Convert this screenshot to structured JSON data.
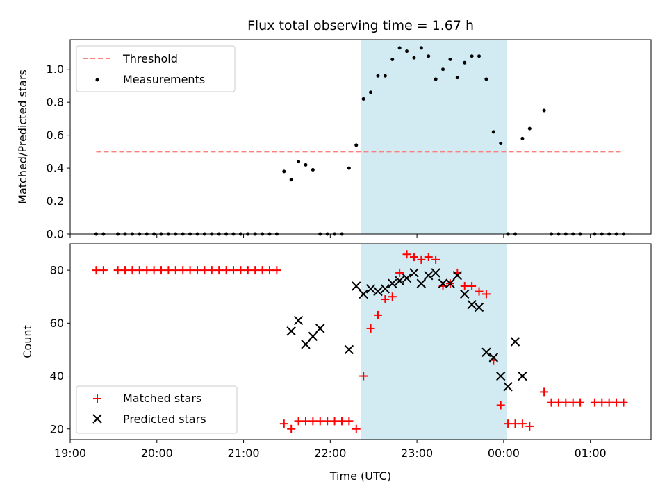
{
  "chart_data": [
    {
      "type": "scatter",
      "title": "Flux total observing time = 1.67 h",
      "xlabel": "",
      "ylabel": "Matched/Predicted stars",
      "xlim": [
        "19:00",
        "01:42"
      ],
      "ylim": [
        0,
        1.18
      ],
      "y_ticks": [
        0.0,
        0.2,
        0.4,
        0.6,
        0.8,
        1.0
      ],
      "y_tick_labels": [
        "0.0",
        "0.2",
        "0.4",
        "0.6",
        "0.8",
        "1.0"
      ],
      "legend_position": "upper-left",
      "shaded_region": {
        "from": "22:21",
        "to": "00:02",
        "color": "#add8e6"
      },
      "threshold": {
        "name": "Threshold",
        "value": 0.5,
        "from": "19:18",
        "to": "01:22",
        "color": "#ff7f7f",
        "style": "dashed"
      },
      "series": [
        {
          "name": "Measurements",
          "color": "#000000",
          "marker": "dot",
          "x": [
            "19:18",
            "19:23",
            "19:33",
            "19:38",
            "19:43",
            "19:48",
            "19:53",
            "19:58",
            "20:03",
            "20:08",
            "20:13",
            "20:18",
            "20:23",
            "20:28",
            "20:33",
            "20:38",
            "20:43",
            "20:48",
            "20:53",
            "20:58",
            "21:03",
            "21:08",
            "21:13",
            "21:18",
            "21:23",
            "21:28",
            "21:33",
            "21:38",
            "21:43",
            "21:48",
            "21:53",
            "21:58",
            "22:03",
            "22:08",
            "22:13",
            "22:18",
            "22:23",
            "22:28",
            "22:33",
            "22:38",
            "22:43",
            "22:48",
            "22:53",
            "22:58",
            "23:03",
            "23:08",
            "23:13",
            "23:18",
            "23:23",
            "23:28",
            "23:33",
            "23:38",
            "23:43",
            "23:48",
            "23:53",
            "23:58",
            "00:03",
            "00:08",
            "00:13",
            "00:18",
            "00:28",
            "00:33",
            "00:38",
            "00:43",
            "00:48",
            "00:53",
            "01:03",
            "01:08",
            "01:13",
            "01:18",
            "01:23"
          ],
          "y": [
            0,
            0,
            0,
            0,
            0,
            0,
            0,
            0,
            0,
            0,
            0,
            0,
            0,
            0,
            0,
            0,
            0,
            0,
            0,
            0,
            0,
            0,
            0,
            0,
            0,
            0.38,
            0.33,
            0.44,
            0.42,
            0.39,
            0,
            0,
            0,
            0,
            0.4,
            0.54,
            0.82,
            0.86,
            0.96,
            0.96,
            1.06,
            1.13,
            1.11,
            1.07,
            1.13,
            1.08,
            0.94,
            1.0,
            1.06,
            0.95,
            1.04,
            1.08,
            1.08,
            0.94,
            0.62,
            0.55,
            0,
            0,
            0.58,
            0.64,
            0.75,
            0,
            0,
            0,
            0,
            0,
            0,
            0,
            0,
            0,
            0
          ]
        }
      ]
    },
    {
      "type": "scatter",
      "title": "",
      "xlabel": "Time (UTC)",
      "ylabel": "Count",
      "xlim": [
        "19:00",
        "01:42"
      ],
      "ylim": [
        16,
        90
      ],
      "y_ticks": [
        20,
        40,
        60,
        80
      ],
      "y_tick_labels": [
        "20",
        "40",
        "60",
        "80"
      ],
      "x_ticks": [
        "19:00",
        "20:00",
        "21:00",
        "22:00",
        "23:00",
        "00:00",
        "01:00"
      ],
      "x_tick_labels": [
        "19:00",
        "20:00",
        "21:00",
        "22:00",
        "23:00",
        "00:00",
        "01:00"
      ],
      "legend_position": "lower-left",
      "shaded_region": {
        "from": "22:21",
        "to": "00:02",
        "color": "#add8e6"
      },
      "series": [
        {
          "name": "Matched stars",
          "color": "#ff0000",
          "marker": "plus",
          "x": [
            "19:18",
            "19:23",
            "19:33",
            "19:38",
            "19:43",
            "19:48",
            "19:53",
            "19:58",
            "20:03",
            "20:08",
            "20:13",
            "20:18",
            "20:23",
            "20:28",
            "20:33",
            "20:38",
            "20:43",
            "20:48",
            "20:53",
            "20:58",
            "21:03",
            "21:08",
            "21:13",
            "21:18",
            "21:23",
            "21:28",
            "21:33",
            "21:38",
            "21:43",
            "21:48",
            "21:53",
            "21:58",
            "22:03",
            "22:08",
            "22:13",
            "22:18",
            "22:23",
            "22:28",
            "22:33",
            "22:38",
            "22:43",
            "22:48",
            "22:53",
            "22:58",
            "23:03",
            "23:08",
            "23:13",
            "23:18",
            "23:23",
            "23:28",
            "23:33",
            "23:38",
            "23:43",
            "23:48",
            "23:53",
            "23:58",
            "00:03",
            "00:08",
            "00:13",
            "00:18",
            "00:28",
            "00:33",
            "00:38",
            "00:43",
            "00:48",
            "00:53",
            "01:03",
            "01:08",
            "01:13",
            "01:18",
            "01:23"
          ],
          "y": [
            80,
            80,
            80,
            80,
            80,
            80,
            80,
            80,
            80,
            80,
            80,
            80,
            80,
            80,
            80,
            80,
            80,
            80,
            80,
            80,
            80,
            80,
            80,
            80,
            80,
            22,
            20,
            23,
            23,
            23,
            23,
            23,
            23,
            23,
            23,
            20,
            40,
            58,
            63,
            69,
            70,
            79,
            86,
            85,
            84,
            85,
            84,
            74,
            75,
            79,
            74,
            74,
            72,
            71,
            46,
            29,
            22,
            22,
            22,
            21,
            34,
            30,
            30,
            30,
            30,
            30,
            30,
            30,
            30,
            30,
            30
          ]
        },
        {
          "name": "Predicted stars",
          "color": "#000000",
          "marker": "x",
          "x": [
            "21:33",
            "21:38",
            "21:43",
            "21:48",
            "21:53",
            "22:13",
            "22:18",
            "22:23",
            "22:28",
            "22:33",
            "22:38",
            "22:43",
            "22:48",
            "22:53",
            "22:58",
            "23:03",
            "23:08",
            "23:13",
            "23:18",
            "23:23",
            "23:28",
            "23:33",
            "23:38",
            "23:43",
            "23:48",
            "23:53",
            "23:58",
            "00:03",
            "00:08",
            "00:13",
            "00:18",
            "00:23"
          ],
          "y": [
            57,
            61,
            52,
            55,
            58,
            50,
            74,
            71,
            73,
            72,
            73,
            75,
            76,
            77,
            79,
            75,
            78,
            79,
            75,
            75,
            78,
            71,
            67,
            66,
            49,
            47,
            40,
            36,
            53,
            40,
            null,
            null
          ]
        }
      ]
    }
  ]
}
